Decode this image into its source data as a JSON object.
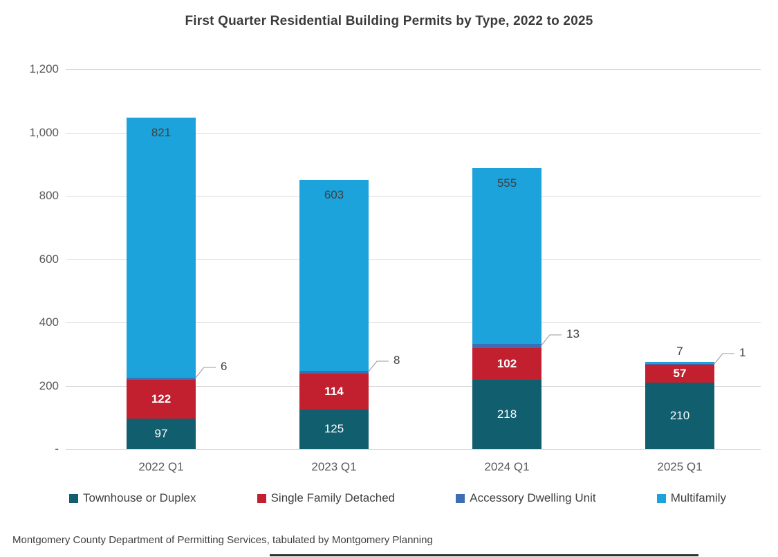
{
  "title": "First Quarter Residential Building Permits by Type, 2022 to 2025",
  "source_note": "Montgomery County Department of Permitting Services, tabulated by Montgomery Planning",
  "colors": {
    "townhouse": "#115E6E",
    "single_family": "#C2202F",
    "adu": "#3E6CB5",
    "multifamily": "#1CA3DC",
    "gridline": "#D9D9D9",
    "axis_text": "#595959",
    "data_label_dark": "#404040",
    "leader_line": "#999999"
  },
  "chart_data": {
    "type": "bar",
    "stacked": true,
    "title": "First Quarter Residential Building Permits by Type, 2022 to 2025",
    "categories": [
      "2022 Q1",
      "2023 Q1",
      "2024 Q1",
      "2025 Q1"
    ],
    "series": [
      {
        "name": "Townhouse or Duplex",
        "color": "#115E6E",
        "values": [
          97,
          125,
          218,
          210
        ],
        "label_style": "white"
      },
      {
        "name": "Single Family Detached",
        "color": "#C2202F",
        "values": [
          122,
          114,
          102,
          57
        ],
        "label_style": "white-bold"
      },
      {
        "name": "Accessory Dwelling Unit",
        "color": "#3E6CB5",
        "values": [
          6,
          8,
          13,
          1
        ],
        "label_style": "callout"
      },
      {
        "name": "Multifamily",
        "color": "#1CA3DC",
        "values": [
          821,
          603,
          555,
          7
        ],
        "label_style": "dark-inside-end"
      }
    ],
    "xlabel": "",
    "ylabel": "",
    "ylim": [
      0,
      1200
    ],
    "y_axis": {
      "tick_values": [
        0,
        200,
        400,
        600,
        800,
        1000,
        1200
      ],
      "tick_labels": [
        "-",
        "200",
        "400",
        "600",
        "800",
        "1,000",
        "1,200"
      ]
    },
    "grid": true,
    "legend_position": "bottom"
  }
}
